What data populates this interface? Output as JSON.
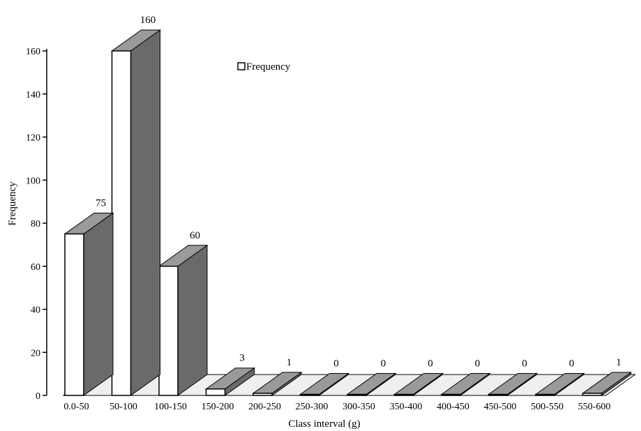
{
  "chart_data": {
    "type": "bar",
    "categories": [
      "0.0-50",
      "50-100",
      "100-150",
      "150-200",
      "200-250",
      "250-300",
      "300-350",
      "350-400",
      "400-450",
      "450-500",
      "500-550",
      "550-600"
    ],
    "series": [
      {
        "name": "Frequency",
        "values": [
          75,
          160,
          60,
          3,
          1,
          0,
          0,
          0,
          0,
          0,
          0,
          1
        ]
      }
    ],
    "data_labels": [
      "75",
      "160",
      "60",
      "3",
      "1",
      "0",
      "0",
      "0",
      "0",
      "0",
      "0",
      "1"
    ],
    "xlabel": "Class interval (g)",
    "ylabel": "Frequency",
    "ylim": [
      0,
      160
    ],
    "yticks": [
      "0",
      "20",
      "40",
      "60",
      "80",
      "100",
      "120",
      "140",
      "160"
    ],
    "legend": {
      "label": "Frequency",
      "placement": "top-center"
    },
    "colors": {
      "bar_front": "#ffffff",
      "bar_side": "#6a6a6a",
      "bar_top": "#9a9a9a",
      "stroke": "#000000"
    },
    "grid": false,
    "style": "3d"
  }
}
